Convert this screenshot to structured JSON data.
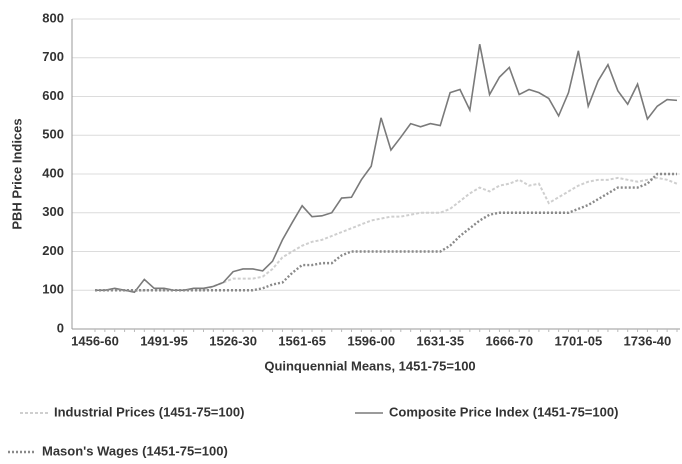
{
  "chart_data": {
    "type": "line",
    "x_label": "Quinquennial Means, 1451-75=100",
    "y_label": "PBH Price Indices",
    "categories": [
      "1456-60",
      null,
      null,
      null,
      null,
      null,
      null,
      "1491-95",
      null,
      null,
      null,
      null,
      null,
      null,
      "1526-30",
      null,
      null,
      null,
      null,
      null,
      null,
      "1561-65",
      null,
      null,
      null,
      null,
      null,
      null,
      "1596-00",
      null,
      null,
      null,
      null,
      null,
      null,
      "1631-35",
      null,
      null,
      null,
      null,
      null,
      null,
      "1666-70",
      null,
      null,
      null,
      null,
      null,
      null,
      "1701-05",
      null,
      null,
      null,
      null,
      null,
      null,
      "1736-40",
      null,
      null,
      null
    ],
    "ylim": [
      0,
      800
    ],
    "yticks": [
      0,
      100,
      200,
      300,
      400,
      500,
      600,
      700,
      800
    ],
    "grid": true,
    "series": [
      {
        "name": "Industrial Prices (1451-75=100)",
        "color": "#cfcfcf",
        "values": [
          100,
          100,
          100,
          100,
          98,
          100,
          100,
          100,
          100,
          100,
          100,
          100,
          110,
          120,
          130,
          130,
          130,
          135,
          155,
          185,
          200,
          215,
          225,
          230,
          240,
          250,
          260,
          270,
          280,
          285,
          290,
          290,
          295,
          300,
          300,
          300,
          310,
          330,
          350,
          365,
          355,
          370,
          375,
          385,
          370,
          375,
          325,
          340,
          355,
          370,
          380,
          385,
          385,
          390,
          385,
          380,
          385,
          390,
          385,
          375
        ]
      },
      {
        "name": "Composite Price Index (1451-75=100)",
        "color": "#7a7a7a",
        "values": [
          100,
          100,
          105,
          100,
          95,
          128,
          105,
          105,
          100,
          100,
          105,
          105,
          110,
          120,
          148,
          155,
          155,
          150,
          175,
          230,
          275,
          318,
          290,
          292,
          300,
          338,
          340,
          385,
          420,
          545,
          462,
          495,
          530,
          522,
          530,
          525,
          610,
          618,
          565,
          735,
          605,
          650,
          675,
          605,
          618,
          610,
          595,
          550,
          610,
          718,
          575,
          640,
          682,
          615,
          580,
          632,
          542,
          575,
          592,
          590
        ]
      },
      {
        "name": "Mason's Wages (1451-75=100)",
        "color": "#8a8a8a",
        "values": [
          100,
          100,
          100,
          100,
          100,
          100,
          100,
          100,
          100,
          100,
          100,
          100,
          100,
          100,
          100,
          100,
          100,
          105,
          115,
          120,
          145,
          165,
          165,
          170,
          170,
          190,
          200,
          200,
          200,
          200,
          200,
          200,
          200,
          200,
          200,
          200,
          215,
          240,
          260,
          280,
          295,
          300,
          300,
          300,
          300,
          300,
          300,
          300,
          300,
          310,
          320,
          335,
          350,
          365,
          365,
          365,
          375,
          400,
          400,
          400
        ]
      }
    ]
  }
}
